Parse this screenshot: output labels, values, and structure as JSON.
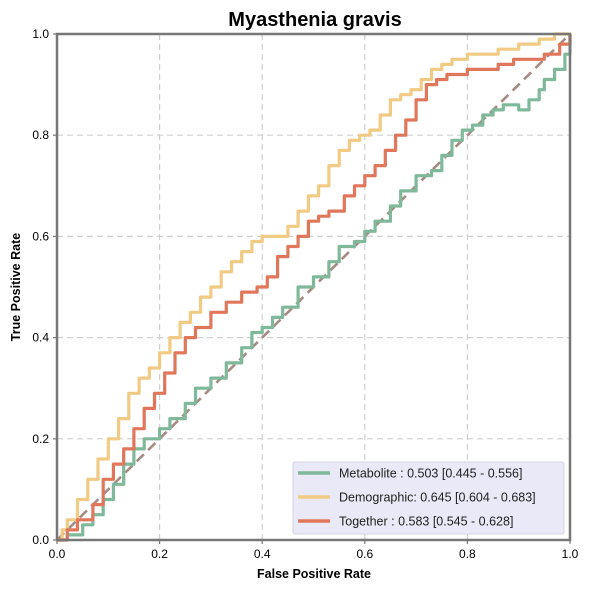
{
  "chart_data": {
    "type": "line",
    "title": "Myasthenia gravis",
    "xlabel": "False Positive Rate",
    "ylabel": "True Positive Rate",
    "xlim": [
      0,
      1
    ],
    "ylim": [
      0,
      1
    ],
    "xticks": [
      "0.0",
      "0.2",
      "0.4",
      "0.6",
      "0.8",
      "1.0"
    ],
    "yticks": [
      "0.0",
      "0.2",
      "0.4",
      "0.6",
      "0.8",
      "1.0"
    ],
    "grid": true,
    "legend_position": "lower-right",
    "diagonal": {
      "x": [
        0,
        1
      ],
      "y": [
        0,
        1
      ],
      "style": "dashed",
      "color": "#a58b83"
    },
    "series": [
      {
        "name": "Metabolite",
        "legend_label": "Metabolite     : 0.503 [0.445 - 0.556]",
        "color": "#7fb89a",
        "x": [
          0,
          0.02,
          0.05,
          0.07,
          0.09,
          0.11,
          0.13,
          0.15,
          0.17,
          0.2,
          0.22,
          0.25,
          0.27,
          0.3,
          0.33,
          0.36,
          0.38,
          0.4,
          0.42,
          0.44,
          0.47,
          0.5,
          0.53,
          0.55,
          0.58,
          0.6,
          0.62,
          0.65,
          0.67,
          0.7,
          0.73,
          0.75,
          0.77,
          0.79,
          0.81,
          0.83,
          0.85,
          0.87,
          0.9,
          0.92,
          0.94,
          0.95,
          0.97,
          0.99,
          1.0
        ],
        "y": [
          0,
          0.01,
          0.03,
          0.05,
          0.08,
          0.11,
          0.15,
          0.18,
          0.2,
          0.22,
          0.24,
          0.27,
          0.3,
          0.32,
          0.35,
          0.38,
          0.41,
          0.42,
          0.44,
          0.46,
          0.5,
          0.52,
          0.55,
          0.58,
          0.59,
          0.61,
          0.63,
          0.66,
          0.69,
          0.72,
          0.73,
          0.76,
          0.79,
          0.81,
          0.82,
          0.84,
          0.85,
          0.86,
          0.85,
          0.87,
          0.89,
          0.91,
          0.93,
          0.96,
          1.0
        ]
      },
      {
        "name": "Demographic",
        "legend_label": "Demographic: 0.645 [0.604 - 0.683]",
        "color": "#f1ca84",
        "x": [
          0,
          0.01,
          0.02,
          0.04,
          0.06,
          0.08,
          0.1,
          0.12,
          0.14,
          0.16,
          0.18,
          0.2,
          0.22,
          0.24,
          0.26,
          0.28,
          0.3,
          0.32,
          0.34,
          0.36,
          0.38,
          0.4,
          0.43,
          0.45,
          0.47,
          0.49,
          0.51,
          0.53,
          0.55,
          0.57,
          0.59,
          0.61,
          0.63,
          0.65,
          0.67,
          0.69,
          0.71,
          0.73,
          0.75,
          0.77,
          0.8,
          0.83,
          0.86,
          0.9,
          0.94,
          0.97,
          1.0
        ],
        "y": [
          0,
          0.02,
          0.04,
          0.08,
          0.12,
          0.16,
          0.2,
          0.24,
          0.29,
          0.32,
          0.34,
          0.37,
          0.4,
          0.43,
          0.45,
          0.48,
          0.5,
          0.53,
          0.55,
          0.57,
          0.59,
          0.6,
          0.6,
          0.62,
          0.65,
          0.68,
          0.7,
          0.74,
          0.77,
          0.79,
          0.8,
          0.81,
          0.84,
          0.87,
          0.88,
          0.89,
          0.91,
          0.93,
          0.94,
          0.95,
          0.96,
          0.96,
          0.97,
          0.98,
          0.99,
          1.0,
          1.0
        ]
      },
      {
        "name": "Together",
        "legend_label": "Together       : 0.583 [0.545 - 0.628]",
        "color": "#e0775a",
        "x": [
          0,
          0.02,
          0.04,
          0.07,
          0.09,
          0.11,
          0.13,
          0.15,
          0.17,
          0.19,
          0.21,
          0.23,
          0.25,
          0.27,
          0.3,
          0.33,
          0.36,
          0.39,
          0.41,
          0.43,
          0.45,
          0.47,
          0.49,
          0.51,
          0.53,
          0.56,
          0.58,
          0.6,
          0.62,
          0.64,
          0.66,
          0.68,
          0.7,
          0.72,
          0.74,
          0.76,
          0.78,
          0.8,
          0.83,
          0.86,
          0.89,
          0.92,
          0.95,
          0.98,
          1.0
        ],
        "y": [
          0,
          0.02,
          0.04,
          0.07,
          0.12,
          0.15,
          0.18,
          0.22,
          0.26,
          0.29,
          0.33,
          0.37,
          0.4,
          0.42,
          0.45,
          0.47,
          0.49,
          0.5,
          0.52,
          0.56,
          0.58,
          0.6,
          0.63,
          0.64,
          0.65,
          0.68,
          0.7,
          0.72,
          0.74,
          0.77,
          0.8,
          0.83,
          0.87,
          0.9,
          0.91,
          0.92,
          0.92,
          0.93,
          0.93,
          0.94,
          0.95,
          0.95,
          0.96,
          0.98,
          1.0
        ]
      }
    ]
  }
}
